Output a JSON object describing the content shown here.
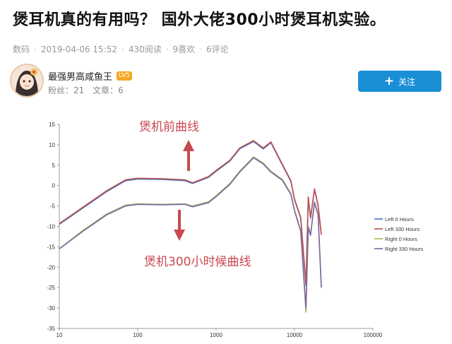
{
  "article": {
    "title": "煲耳机真的有用吗？ 国外大佬300小时煲耳机实验。",
    "category": "数码",
    "datetime": "2019-04-06 15:52",
    "reads": "430阅读",
    "likes": "9喜欢",
    "comments": "6评论",
    "separator": "·"
  },
  "author": {
    "name": "最强男高咸鱼王",
    "level": "LV5",
    "fans": "粉丝：21",
    "articles": "文章：6"
  },
  "follow": {
    "label": "关注",
    "icon": "plus-icon"
  },
  "colors": {
    "accent": "#1a8fd6",
    "left0": "#4472c4",
    "left330": "#c0504d",
    "right0": "#9bbb59",
    "right330": "#8064a2",
    "annotation": "#c9484f"
  },
  "chart_data": {
    "type": "line",
    "x_scale": "log",
    "xlim": [
      10,
      100000
    ],
    "ylim": [
      -35,
      15
    ],
    "x_ticks": [
      "10",
      "100",
      "1000",
      "10000",
      "100000"
    ],
    "y_ticks": [
      "15",
      "10",
      "5",
      "0",
      "-5",
      "-10",
      "-15",
      "-20",
      "-25",
      "-30",
      "-35"
    ],
    "legend_position": "right",
    "annotations": [
      "煲机前曲线",
      "煲机300小时候曲线"
    ],
    "series": [
      {
        "name": "Left 0 Hours",
        "x": [
          10,
          20,
          40,
          70,
          100,
          200,
          400,
          500,
          800,
          1000,
          1500,
          2000,
          3000,
          4000,
          5000,
          7000,
          9000,
          10000,
          12000,
          14000,
          15000,
          16000,
          18000,
          20000,
          22000
        ],
        "y": [
          -9.5,
          -5.5,
          -1.5,
          1.2,
          1.6,
          1.5,
          1.2,
          0.5,
          2.0,
          3.5,
          6.0,
          9.0,
          10.8,
          9.0,
          10.5,
          5.0,
          1.0,
          -3.5,
          -8.0,
          -24.5,
          -3.0,
          -8.0,
          -1.0,
          -5.0,
          -12.0
        ]
      },
      {
        "name": "Left 330 Hours",
        "x": [
          10,
          20,
          40,
          70,
          100,
          200,
          400,
          500,
          800,
          1000,
          1500,
          2000,
          3000,
          4000,
          5000,
          7000,
          9000,
          10000,
          12000,
          14000,
          15000,
          16000,
          18000,
          20000,
          22000
        ],
        "y": [
          -9.3,
          -5.3,
          -1.3,
          1.4,
          1.8,
          1.7,
          1.4,
          0.7,
          2.2,
          3.7,
          6.2,
          9.2,
          11.0,
          9.2,
          10.7,
          5.2,
          1.2,
          -3.3,
          -7.8,
          -24.0,
          -2.8,
          -7.8,
          -0.8,
          -4.8,
          -12.0
        ]
      },
      {
        "name": "Right 0 Hours",
        "x": [
          10,
          20,
          40,
          70,
          100,
          200,
          400,
          500,
          800,
          1000,
          1500,
          2000,
          3000,
          4000,
          5000,
          7000,
          9000,
          10000,
          12000,
          14000,
          15000,
          16000,
          18000,
          20000,
          22000
        ],
        "y": [
          -15.5,
          -11.0,
          -7.0,
          -4.8,
          -4.5,
          -4.6,
          -4.5,
          -5.0,
          -4.0,
          -2.5,
          0.5,
          3.5,
          7.0,
          5.5,
          3.5,
          1.5,
          -2.0,
          -6.0,
          -11.0,
          -31.0,
          -10.0,
          -12.0,
          -4.0,
          -7.0,
          -25.0
        ]
      },
      {
        "name": "Right 330 Hours",
        "x": [
          10,
          20,
          40,
          70,
          100,
          200,
          400,
          500,
          800,
          1000,
          1500,
          2000,
          3000,
          4000,
          5000,
          7000,
          9000,
          10000,
          12000,
          14000,
          15000,
          16000,
          18000,
          20000,
          22000
        ],
        "y": [
          -15.5,
          -11.2,
          -7.2,
          -5.0,
          -4.6,
          -4.7,
          -4.6,
          -5.2,
          -4.2,
          -2.7,
          0.3,
          3.3,
          6.8,
          5.3,
          3.3,
          1.3,
          -2.2,
          -6.2,
          -11.2,
          -30.0,
          -10.2,
          -12.2,
          -4.2,
          -7.2,
          -25.0
        ]
      }
    ]
  }
}
